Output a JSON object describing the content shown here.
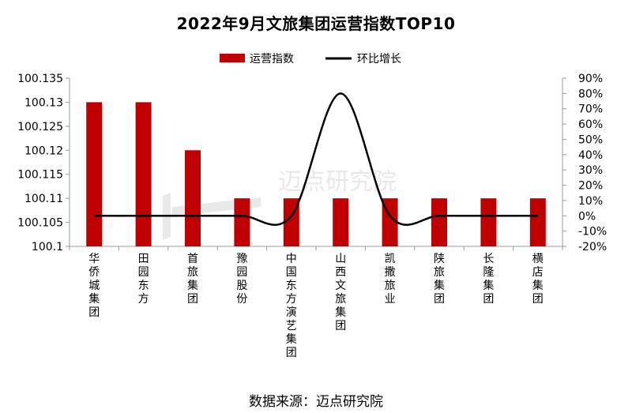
{
  "title": "2022年9月文旅集团运营指数TOP10",
  "source": "数据来源：迈点研究院",
  "watermark": "迈点研究院",
  "colors": {
    "bar": "#C00000",
    "line": "#000000"
  },
  "chart_data": {
    "type": "bar",
    "title": "2022年9月文旅集团运营指数TOP10",
    "categories": [
      "华侨城集团",
      "田园东方",
      "首旅集团",
      "豫园股份",
      "中国东方演艺集团",
      "山西文旅集团",
      "凯撒旅业",
      "陕旅集团",
      "长隆集团",
      "横店集团"
    ],
    "series": [
      {
        "name": "运营指数",
        "type": "bar",
        "axis": "left",
        "values": [
          100.13,
          100.13,
          100.12,
          100.11,
          100.11,
          100.11,
          100.11,
          100.11,
          100.11,
          100.11
        ]
      },
      {
        "name": "环比增长",
        "type": "line",
        "axis": "right",
        "smooth": true,
        "values": [
          0,
          0,
          0,
          0,
          0,
          80,
          0,
          0,
          0,
          0
        ]
      }
    ],
    "y_left": {
      "min": 100.1,
      "max": 100.135,
      "step": 0.005,
      "ticks": [
        "100.135",
        "100.13",
        "100.125",
        "100.12",
        "100.115",
        "100.11",
        "100.105",
        "100.1"
      ]
    },
    "y_right": {
      "min": -20,
      "max": 90,
      "step": 10,
      "ticks": [
        "90%",
        "80%",
        "70%",
        "60%",
        "50%",
        "40%",
        "30%",
        "20%",
        "10%",
        "0%",
        "-10%",
        "-20%"
      ]
    },
    "legend": "top-center",
    "grid": false
  }
}
